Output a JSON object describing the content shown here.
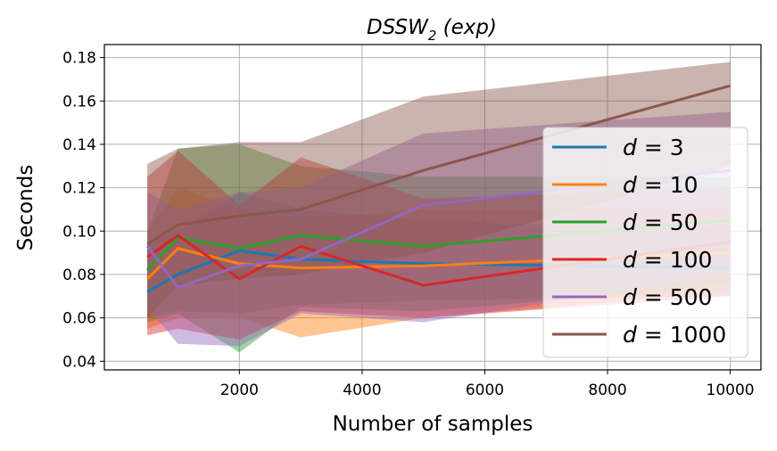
{
  "chart_data": {
    "type": "line",
    "title": "DSSW",
    "title_subscript": "2",
    "title_suffix": " (exp)",
    "xlabel": "Number of samples",
    "ylabel": "Seconds",
    "xlim": [
      -200,
      10500
    ],
    "ylim": [
      0.036,
      0.186
    ],
    "xticks": [
      2000,
      4000,
      6000,
      8000,
      10000
    ],
    "xtick_labels": [
      "2000",
      "4000",
      "6000",
      "8000",
      "10000"
    ],
    "yticks": [
      0.04,
      0.06,
      0.08,
      0.1,
      0.12,
      0.14,
      0.16,
      0.18
    ],
    "ytick_labels": [
      "0.04",
      "0.06",
      "0.08",
      "0.10",
      "0.12",
      "0.14",
      "0.16",
      "0.18"
    ],
    "grid": true,
    "legend_position": "right",
    "x": [
      500,
      1000,
      2000,
      3000,
      5000,
      10000
    ],
    "series": [
      {
        "name": "d = 3",
        "label_var": "d",
        "label_val": "3",
        "color": "#1f77b4",
        "values": [
          0.072,
          0.08,
          0.091,
          0.087,
          0.085,
          0.083
        ],
        "lower": [
          0.06,
          0.063,
          0.062,
          0.066,
          0.068,
          0.07
        ],
        "upper": [
          0.095,
          0.1,
          0.118,
          0.11,
          0.105,
          0.1
        ]
      },
      {
        "name": "d = 10",
        "label_var": "d",
        "label_val": "10",
        "color": "#ff7f0e",
        "values": [
          0.078,
          0.092,
          0.085,
          0.083,
          0.084,
          0.09
        ],
        "lower": [
          0.055,
          0.06,
          0.06,
          0.051,
          0.06,
          0.072
        ],
        "upper": [
          0.1,
          0.12,
          0.11,
          0.105,
          0.11,
          0.11
        ]
      },
      {
        "name": "d = 50",
        "label_var": "d",
        "label_val": "50",
        "color": "#2ca02c",
        "values": [
          0.082,
          0.097,
          0.092,
          0.098,
          0.093,
          0.105
        ],
        "lower": [
          0.058,
          0.062,
          0.044,
          0.065,
          0.063,
          0.075
        ],
        "upper": [
          0.1,
          0.138,
          0.14,
          0.13,
          0.125,
          0.125
        ]
      },
      {
        "name": "d = 100",
        "label_var": "d",
        "label_val": "100",
        "color": "#d62728",
        "values": [
          0.088,
          0.098,
          0.078,
          0.093,
          0.075,
          0.095
        ],
        "lower": [
          0.052,
          0.055,
          0.05,
          0.063,
          0.06,
          0.07
        ],
        "upper": [
          0.125,
          0.137,
          0.112,
          0.134,
          0.115,
          0.12
        ]
      },
      {
        "name": "d = 500",
        "label_var": "d",
        "label_val": "500",
        "color": "#9467bd",
        "values": [
          0.093,
          0.074,
          0.084,
          0.087,
          0.112,
          0.128
        ],
        "lower": [
          0.065,
          0.048,
          0.047,
          0.062,
          0.058,
          0.08
        ],
        "upper": [
          0.118,
          0.11,
          0.118,
          0.12,
          0.145,
          0.155
        ]
      },
      {
        "name": "d = 1000",
        "label_var": "d",
        "label_val": "1000",
        "color": "#8c564b",
        "values": [
          0.094,
          0.103,
          0.107,
          0.11,
          0.128,
          0.167
        ],
        "lower": [
          0.06,
          0.075,
          0.078,
          0.08,
          0.09,
          0.13
        ],
        "upper": [
          0.131,
          0.138,
          0.141,
          0.141,
          0.162,
          0.178
        ]
      }
    ]
  }
}
